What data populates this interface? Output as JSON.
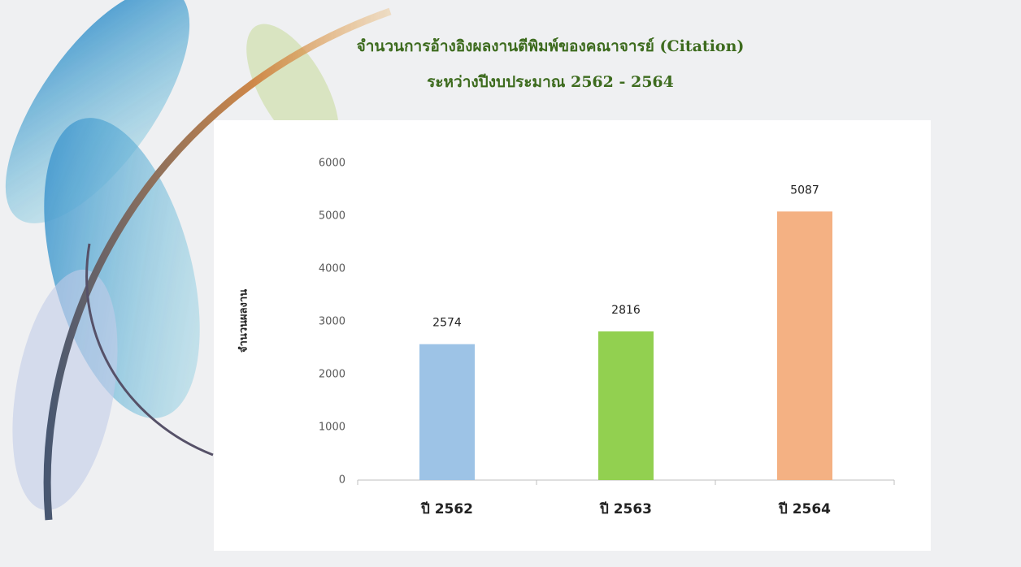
{
  "chart_data": {
    "type": "bar",
    "title": "จำนวนการอ้างอิงผลงานตีพิมพ์ของคณาจารย์ (Citation)",
    "subtitle": "ระหว่างปีงบประมาณ 2562 - 2564",
    "y_label": "จำนวนผลงาน",
    "categories": [
      "ปี 2562",
      "ปี 2563",
      "ปี 2564"
    ],
    "values": [
      2574,
      2816,
      5087
    ],
    "colors": [
      "#9dc3e6",
      "#92d050",
      "#f4b183"
    ],
    "ylim": [
      0,
      6000
    ],
    "yticks": [
      0,
      1000,
      2000,
      3000,
      4000,
      5000,
      6000
    ],
    "grid": false,
    "value_labels_shown": true
  }
}
